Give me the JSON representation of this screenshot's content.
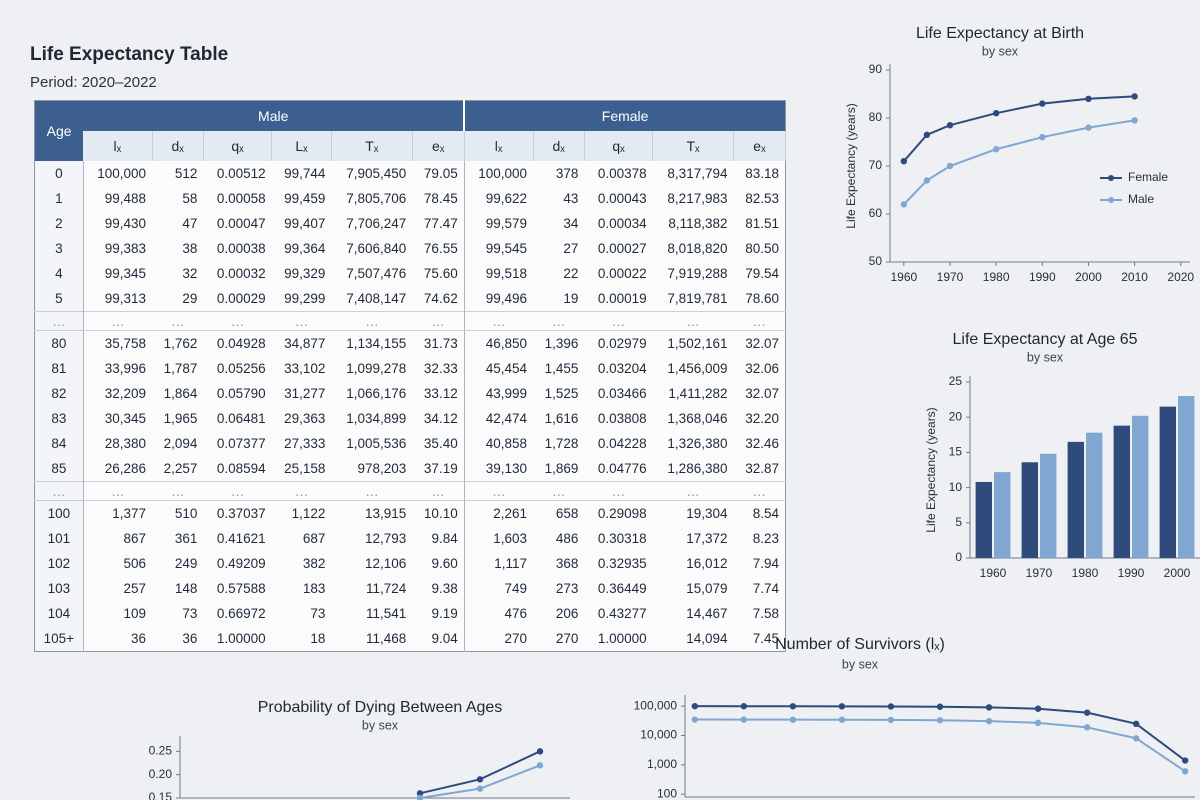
{
  "header": {
    "title": "Life Expectancy Table",
    "period": "Period: 2020–2022"
  },
  "table": {
    "age_header": "Age",
    "groups": [
      "Male",
      "Female"
    ],
    "male_columns": [
      "lₓ",
      "dₓ",
      "qₓ",
      "Lₓ",
      "Tₓ",
      "eₓ"
    ],
    "female_columns": [
      "lₓ",
      "dₓ",
      "qₓ",
      "Tₓ",
      "eₓ"
    ],
    "rows": [
      [
        "0",
        "100,000",
        "512",
        "0.00512",
        "99,744",
        "7,905,450",
        "79.05",
        "100,000",
        "378",
        "0.00378",
        "8,317,794",
        "83.18"
      ],
      [
        "1",
        "99,488",
        "58",
        "0.00058",
        "99,459",
        "7,805,706",
        "78.45",
        "99,622",
        "43",
        "0.00043",
        "8,217,983",
        "82.53"
      ],
      [
        "2",
        "99,430",
        "47",
        "0.00047",
        "99,407",
        "7,706,247",
        "77.47",
        "99,579",
        "34",
        "0.00034",
        "8,118,382",
        "81.51"
      ],
      [
        "3",
        "99,383",
        "38",
        "0.00038",
        "99,364",
        "7,606,840",
        "76.55",
        "99,545",
        "27",
        "0.00027",
        "8,018,820",
        "80.50"
      ],
      [
        "4",
        "99,345",
        "32",
        "0.00032",
        "99,329",
        "7,507,476",
        "75.60",
        "99,518",
        "22",
        "0.00022",
        "7,919,288",
        "79.54"
      ],
      [
        "5",
        "99,313",
        "29",
        "0.00029",
        "99,299",
        "7,408,147",
        "74.62",
        "99,496",
        "19",
        "0.00019",
        "7,819,781",
        "78.60"
      ],
      [
        "…",
        "…",
        "…",
        "…",
        "…",
        "…",
        "…",
        "…",
        "…",
        "…",
        "…",
        "…"
      ],
      [
        "80",
        "35,758",
        "1,762",
        "0.04928",
        "34,877",
        "1,134,155",
        "31.73",
        "46,850",
        "1,396",
        "0.02979",
        "1,502,161",
        "32.07"
      ],
      [
        "81",
        "33,996",
        "1,787",
        "0.05256",
        "33,102",
        "1,099,278",
        "32.33",
        "45,454",
        "1,455",
        "0.03204",
        "1,456,009",
        "32.06"
      ],
      [
        "82",
        "32,209",
        "1,864",
        "0.05790",
        "31,277",
        "1,066,176",
        "33.12",
        "43,999",
        "1,525",
        "0.03466",
        "1,411,282",
        "32.07"
      ],
      [
        "83",
        "30,345",
        "1,965",
        "0.06481",
        "29,363",
        "1,034,899",
        "34.12",
        "42,474",
        "1,616",
        "0.03808",
        "1,368,046",
        "32.20"
      ],
      [
        "84",
        "28,380",
        "2,094",
        "0.07377",
        "27,333",
        "1,005,536",
        "35.40",
        "40,858",
        "1,728",
        "0.04228",
        "1,326,380",
        "32.46"
      ],
      [
        "85",
        "26,286",
        "2,257",
        "0.08594",
        "25,158",
        "978,203",
        "37.19",
        "39,130",
        "1,869",
        "0.04776",
        "1,286,380",
        "32.87"
      ],
      [
        "…",
        "…",
        "…",
        "…",
        "…",
        "…",
        "…",
        "…",
        "…",
        "…",
        "…",
        "…"
      ],
      [
        "100",
        "1,377",
        "510",
        "0.37037",
        "1,122",
        "13,915",
        "10.10",
        "2,261",
        "658",
        "0.29098",
        "19,304",
        "8.54"
      ],
      [
        "101",
        "867",
        "361",
        "0.41621",
        "687",
        "12,793",
        "9.84",
        "1,603",
        "486",
        "0.30318",
        "17,372",
        "8.23"
      ],
      [
        "102",
        "506",
        "249",
        "0.49209",
        "382",
        "12,106",
        "9.60",
        "1,117",
        "368",
        "0.32935",
        "16,012",
        "7.94"
      ],
      [
        "103",
        "257",
        "148",
        "0.57588",
        "183",
        "11,724",
        "9.38",
        "749",
        "273",
        "0.36449",
        "15,079",
        "7.74"
      ],
      [
        "104",
        "109",
        "73",
        "0.66972",
        "73",
        "11,541",
        "9.19",
        "476",
        "206",
        "0.43277",
        "14,467",
        "7.58"
      ],
      [
        "105+",
        "36",
        "36",
        "1.00000",
        "18",
        "11,468",
        "9.04",
        "270",
        "270",
        "1.00000",
        "14,094",
        "7.45"
      ]
    ]
  },
  "chart_data": [
    {
      "type": "line",
      "title": "Life Expectancy at Birth",
      "subtitle": "by sex",
      "y_label": "Life Expectancy (years)",
      "x": [
        1960,
        1965,
        1970,
        1980,
        1990,
        2000,
        2010
      ],
      "xlim": [
        1957,
        2022
      ],
      "xticks": [
        1960,
        1970,
        1980,
        1990,
        2000,
        2010,
        2020
      ],
      "ylim": [
        50,
        90
      ],
      "yticks": [
        50,
        60,
        70,
        80,
        90
      ],
      "legend": "right",
      "series": [
        {
          "name": "Female",
          "color": "#2f4b7c",
          "values": [
            71,
            76.5,
            78.5,
            81,
            83,
            84,
            84.5
          ]
        },
        {
          "name": "Male",
          "color": "#7fa7d1",
          "values": [
            62,
            67,
            70,
            73.5,
            76,
            78,
            79.5
          ]
        }
      ]
    },
    {
      "type": "bar",
      "title": "Life Expectancy at Age 65",
      "subtitle": "by sex",
      "y_label": "Life Expectancy (years)",
      "categories": [
        "1960",
        "1970",
        "1980",
        "1990",
        "2000"
      ],
      "ylim": [
        0,
        25
      ],
      "yticks": [
        0,
        5,
        10,
        15,
        20,
        25
      ],
      "series": [
        {
          "color": "#2f4b7c",
          "values": [
            10.8,
            13.6,
            16.5,
            18.8,
            21.5
          ]
        },
        {
          "color": "#7fa7d1",
          "values": [
            12.2,
            14.8,
            17.8,
            20.2,
            23
          ]
        }
      ]
    },
    {
      "type": "line",
      "title": "Probability of Dying Between Ages",
      "subtitle": "by sex",
      "x": [
        80,
        90,
        100
      ],
      "xlim": [
        40,
        105
      ],
      "ylim": [
        0.15,
        0.27
      ],
      "yticks": [
        0.15,
        {
          "value": 0.2,
          "label": "0.20"
        },
        0.25
      ],
      "series": [
        {
          "color": "#2f4b7c",
          "values": [
            0.16,
            0.19,
            0.25
          ]
        },
        {
          "color": "#7fa7d1",
          "values": [
            0.15,
            0.17,
            0.22
          ]
        }
      ]
    },
    {
      "type": "line",
      "title": "Number of Survivors (lₓ)",
      "subtitle": "by sex",
      "log_y": true,
      "x": [
        0,
        10,
        20,
        30,
        40,
        50,
        60,
        70,
        80,
        90,
        100
      ],
      "xlim": [
        -2,
        102
      ],
      "ylim": [
        80,
        150000
      ],
      "yticks": [
        {
          "value": 100000,
          "label": "100,000"
        },
        {
          "value": 10000,
          "label": "10,000"
        },
        {
          "value": 1000,
          "label": "1,000"
        },
        100
      ],
      "series": [
        {
          "color": "#2f4b7c",
          "values": [
            100000,
            99300,
            99000,
            98500,
            97500,
            95500,
            91000,
            82000,
            60000,
            25000,
            1400
          ]
        },
        {
          "color": "#7fa7d1",
          "values": [
            35000,
            34800,
            34600,
            34400,
            34000,
            33000,
            31000,
            27000,
            19000,
            8000,
            600
          ]
        }
      ]
    }
  ]
}
